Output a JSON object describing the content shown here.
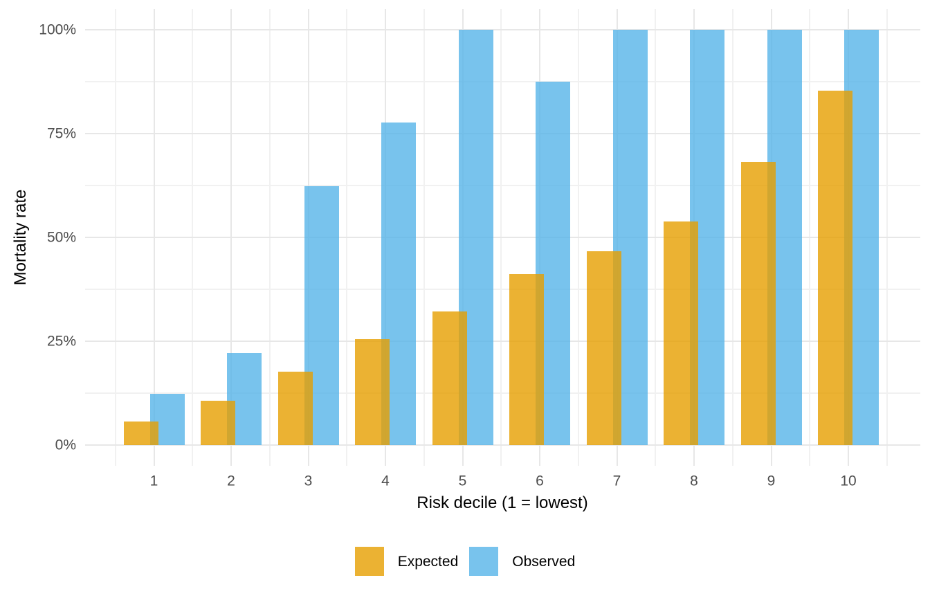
{
  "chart_data": {
    "type": "bar",
    "title": "",
    "xlabel": "Risk decile (1 = lowest)",
    "ylabel": "Mortality rate",
    "categories": [
      "1",
      "2",
      "3",
      "4",
      "5",
      "6",
      "7",
      "8",
      "9",
      "10"
    ],
    "series": [
      {
        "name": "Expected",
        "color": "#E69F00",
        "alpha": 0.8,
        "values": [
          5.6,
          10.7,
          17.6,
          25.5,
          32.1,
          41.1,
          46.6,
          53.8,
          68.1,
          85.3
        ]
      },
      {
        "name": "Observed",
        "color": "#56B4E9",
        "alpha": 0.8,
        "values": [
          12.4,
          22.2,
          62.4,
          77.6,
          100,
          87.5,
          100,
          100,
          100,
          100
        ]
      }
    ],
    "ylim": [
      0,
      100
    ],
    "y_tick_labels": [
      "0%",
      "25%",
      "50%",
      "75%",
      "100%"
    ],
    "y_tick_values": [
      0,
      25,
      50,
      75,
      100
    ],
    "y_minor_values": [
      12.5,
      37.5,
      62.5,
      87.5
    ],
    "grid": "on",
    "legend_position": "bottom",
    "bar_style": "dodged-overlapping"
  },
  "colors": {
    "background": "#FFFFFF",
    "grid_major": "#E7E7E7",
    "grid_minor": "#F1F1F1",
    "tick_text": "#4D4D4D",
    "title_text": "#000000",
    "expected_fill": "#E69F00",
    "observed_fill": "#56B4E9"
  }
}
